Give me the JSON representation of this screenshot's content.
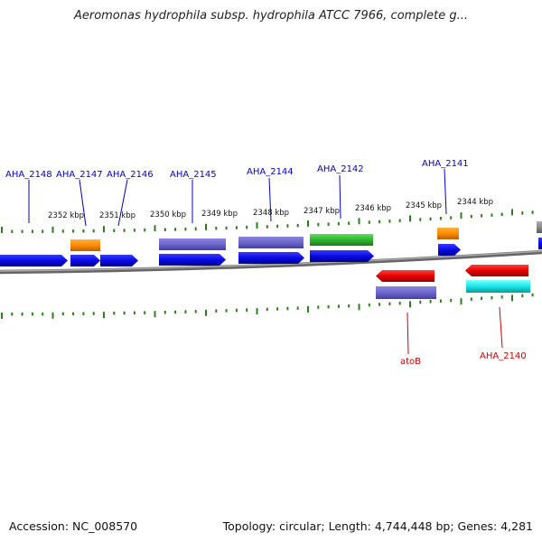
{
  "title": "Aeromonas hydrophila subsp. hydrophila ATCC 7966, complete g...",
  "footer": {
    "accession": "Accession: NC_008570",
    "topology": "Topology: circular; Length: 4,744,448 bp; Genes: 4,281"
  },
  "colors": {
    "forward_label": "#0000cc",
    "reverse_label": "#cc0000",
    "tick": "#2e7d1e",
    "backbone": "#888888"
  },
  "kbp_labels": [
    "2352 kbp",
    "2351 kbp",
    "2350 kbp",
    "2349 kbp",
    "2348 kbp",
    "2347 kbp",
    "2346 kbp",
    "2345 kbp",
    "2344 kbp"
  ],
  "forward_gene_labels": [
    "AHA_2148",
    "AHA_2147",
    "AHA_2146",
    "AHA_2145",
    "AHA_2144",
    "AHA_2142",
    "AHA_2141"
  ],
  "reverse_gene_labels": [
    "atoB",
    "AHA_2140"
  ]
}
